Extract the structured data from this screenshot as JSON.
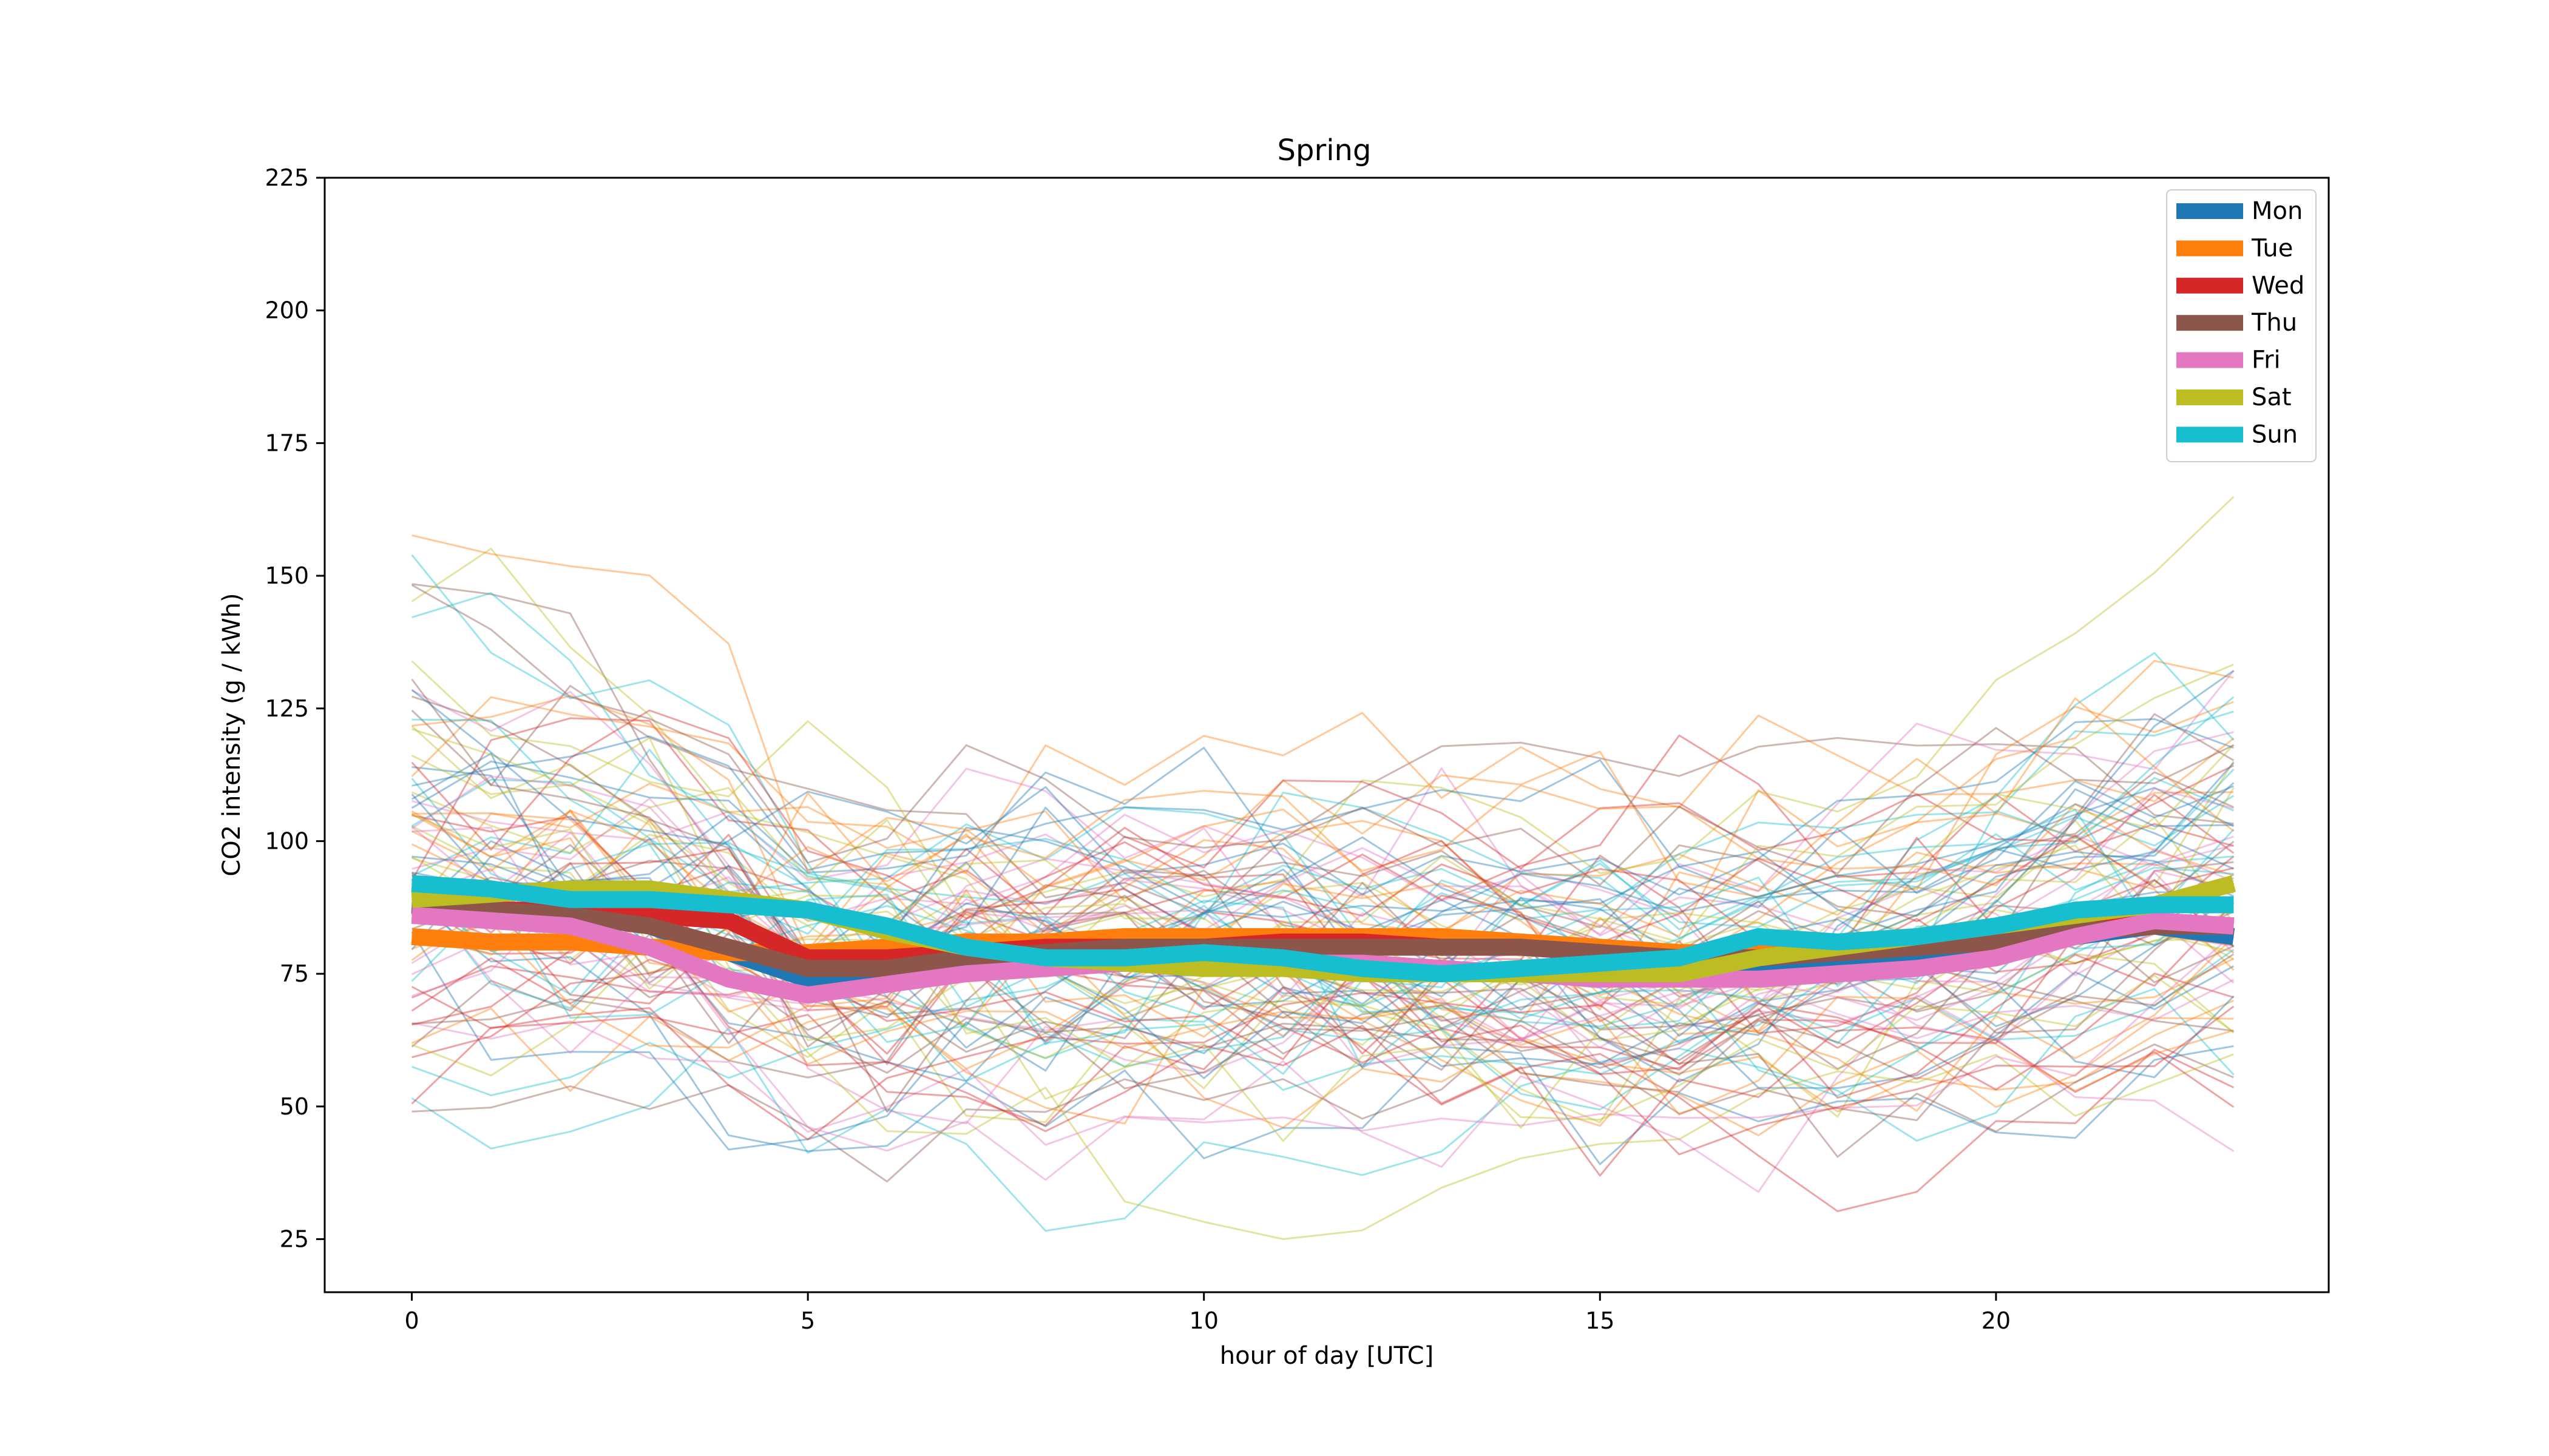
{
  "chart_data": {
    "type": "line",
    "title": "Spring",
    "xlabel": "hour of day [UTC]",
    "ylabel": "CO2 intensity (g / kWh)",
    "xlim": [
      -1.1,
      24.2
    ],
    "ylim": [
      15,
      225
    ],
    "xticks": [
      0,
      5,
      10,
      15,
      20
    ],
    "yticks": [
      25,
      50,
      75,
      100,
      125,
      150,
      175,
      200,
      225
    ],
    "legend_position": "top-right",
    "x": [
      0,
      1,
      2,
      3,
      4,
      5,
      6,
      7,
      8,
      9,
      10,
      11,
      12,
      13,
      14,
      15,
      16,
      17,
      18,
      19,
      20,
      21,
      22,
      23
    ],
    "background_days": {
      "count": 92,
      "description": "thin translucent daily profiles, colored by weekday",
      "seed": 7
    },
    "series": [
      {
        "name": "Mon",
        "color": "#1f77b4",
        "values": [
          88,
          87,
          86,
          84,
          79,
          74,
          75,
          76,
          77,
          77,
          77,
          77,
          77,
          76,
          75,
          75,
          76,
          77,
          78,
          79,
          80,
          82,
          84,
          82
        ]
      },
      {
        "name": "Tue",
        "color": "#ff7f0e",
        "values": [
          82,
          81,
          81,
          80,
          79,
          79,
          80,
          81,
          81,
          82,
          82,
          82,
          82,
          82,
          81,
          80,
          79,
          79,
          80,
          80,
          81,
          83,
          84,
          84
        ]
      },
      {
        "name": "Wed",
        "color": "#d62728",
        "values": [
          87,
          87,
          87,
          86,
          85,
          78,
          78,
          79,
          80,
          80,
          80,
          81,
          81,
          80,
          80,
          79,
          78,
          78,
          79,
          80,
          81,
          83,
          85,
          84
        ]
      },
      {
        "name": "Thu",
        "color": "#8c564b",
        "values": [
          87,
          87,
          86,
          84,
          80,
          76,
          76,
          78,
          79,
          80,
          80,
          80,
          80,
          80,
          80,
          79,
          78,
          78,
          79,
          80,
          81,
          83,
          84,
          84
        ]
      },
      {
        "name": "Fri",
        "color": "#e377c2",
        "values": [
          86,
          85,
          84,
          80,
          74,
          71,
          73,
          75,
          76,
          77,
          77,
          77,
          77,
          76,
          75,
          74,
          74,
          74,
          75,
          76,
          78,
          82,
          85,
          84
        ]
      },
      {
        "name": "Sat",
        "color": "#bcbd22",
        "values": [
          89,
          90,
          91,
          91,
          89,
          87,
          83,
          80,
          78,
          77,
          76,
          76,
          75,
          75,
          75,
          75,
          75,
          78,
          80,
          82,
          84,
          86,
          88,
          92
        ]
      },
      {
        "name": "Sun",
        "color": "#17becf",
        "values": [
          92,
          91,
          89,
          89,
          88,
          87,
          84,
          80,
          78,
          78,
          79,
          78,
          76,
          75,
          76,
          77,
          78,
          82,
          81,
          82,
          84,
          87,
          88,
          88
        ]
      }
    ]
  }
}
